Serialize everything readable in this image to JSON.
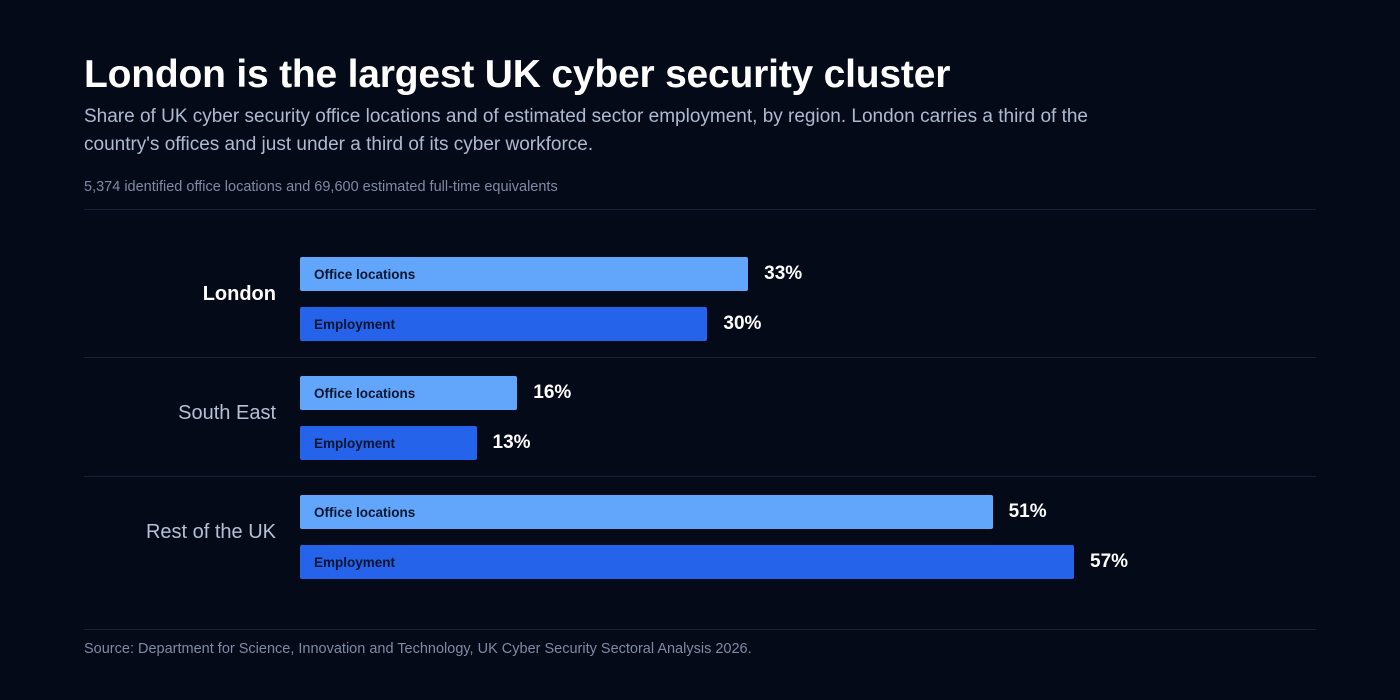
{
  "header": {
    "title": "London is the largest UK cyber security cluster",
    "subtitle": "Share of UK cyber security office locations and of estimated sector employment, by region. London carries a third of the country's offices and just under a third of its cyber workforce.",
    "note": "5,374 identified office locations and 69,600 estimated full-time equivalents"
  },
  "footer": {
    "source": "Source: Department for Science, Innovation and Technology, UK Cyber Security Sectoral Analysis 2026."
  },
  "colors": {
    "background": "#050a18",
    "office_locations": "#62a6fb",
    "employment": "#2563eb"
  },
  "chart_data": {
    "type": "bar",
    "orientation": "horizontal",
    "title": "London is the largest UK cyber security cluster",
    "xlim": [
      0,
      100
    ],
    "unit": "%",
    "grid": false,
    "categories": [
      "London",
      "South East",
      "Rest of the UK"
    ],
    "highlight_category": "London",
    "series": [
      {
        "name": "Office locations",
        "values": [
          33,
          16,
          51
        ]
      },
      {
        "name": "Employment",
        "values": [
          30,
          13,
          57
        ]
      }
    ]
  }
}
